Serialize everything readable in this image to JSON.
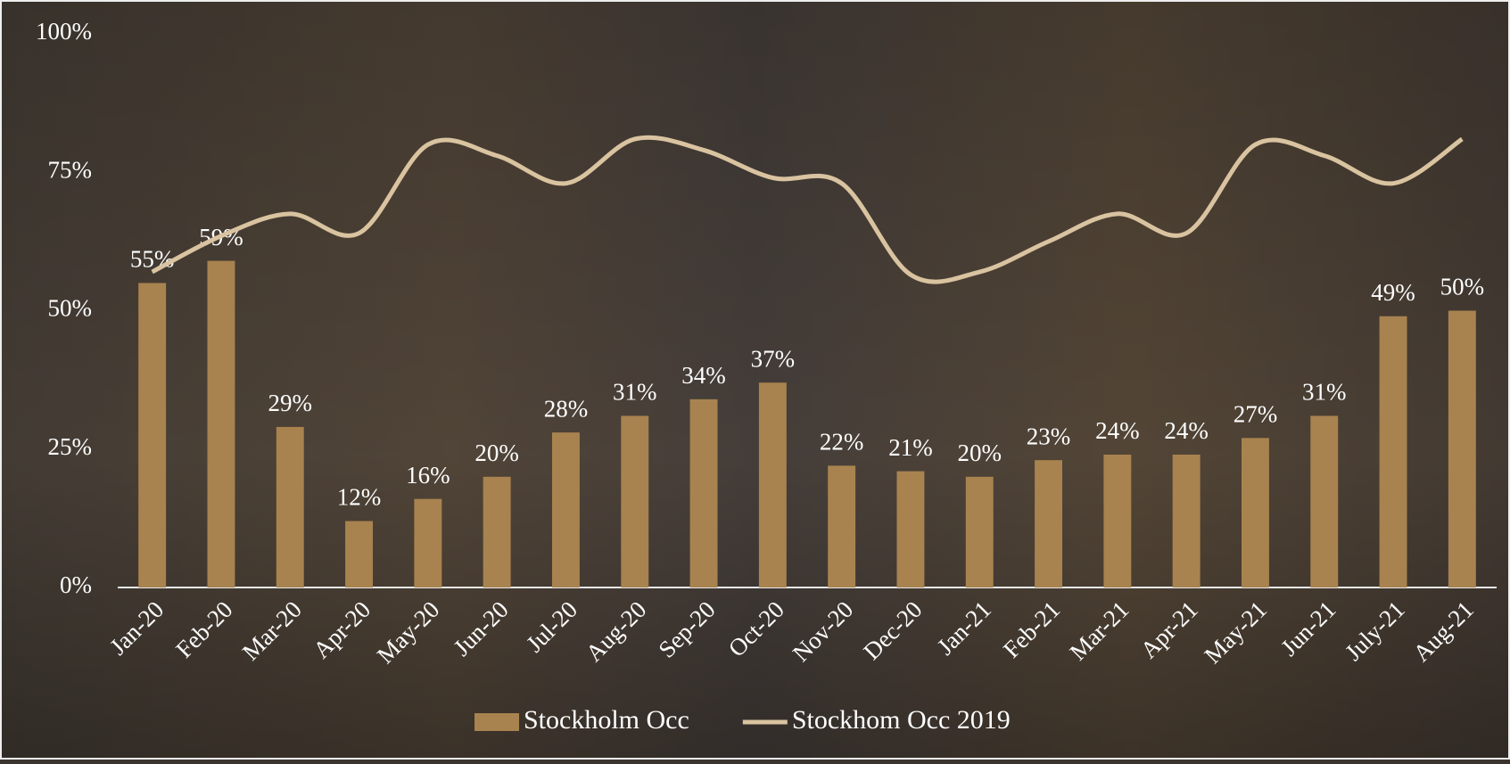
{
  "chart_data": {
    "type": "bar-line",
    "categories": [
      "Jan-20",
      "Feb-20",
      "Mar-20",
      "Apr-20",
      "May-20",
      "Jun-20",
      "Jul-20",
      "Aug-20",
      "Sep-20",
      "Oct-20",
      "Nov-20",
      "Dec-20",
      "Jan-21",
      "Feb-21",
      "Mar-21",
      "Apr-21",
      "May-21",
      "Jun-21",
      "July-21",
      "Aug-21"
    ],
    "series": [
      {
        "name": "Stockholm Occ",
        "color": "#a8834f",
        "type": "bar",
        "values": [
          55,
          59,
          29,
          12,
          16,
          20,
          28,
          31,
          34,
          37,
          22,
          21,
          20,
          23,
          24,
          24,
          27,
          31,
          49,
          50
        ],
        "value_labels": [
          "55%",
          "59%",
          "29%",
          "12%",
          "16%",
          "20%",
          "28%",
          "31%",
          "34%",
          "37%",
          "22%",
          "21%",
          "20%",
          "23%",
          "24%",
          "24%",
          "27%",
          "31%",
          "49%",
          "50%"
        ]
      },
      {
        "name": "Stockhom Occ 2019",
        "color": "#d9c3a0",
        "type": "line",
        "values": [
          57,
          63.5,
          67.5,
          64,
          80,
          78,
          73,
          81,
          79,
          74,
          73,
          56.5,
          57,
          62.5,
          67.5,
          64,
          80,
          78,
          73,
          81
        ]
      }
    ],
    "ylim": [
      0,
      100
    ],
    "yticks": [
      {
        "value": 0,
        "label": "0%"
      },
      {
        "value": 25,
        "label": "25%"
      },
      {
        "value": 50,
        "label": "50%"
      },
      {
        "value": 75,
        "label": "75%"
      },
      {
        "value": 100,
        "label": "100%"
      }
    ]
  }
}
